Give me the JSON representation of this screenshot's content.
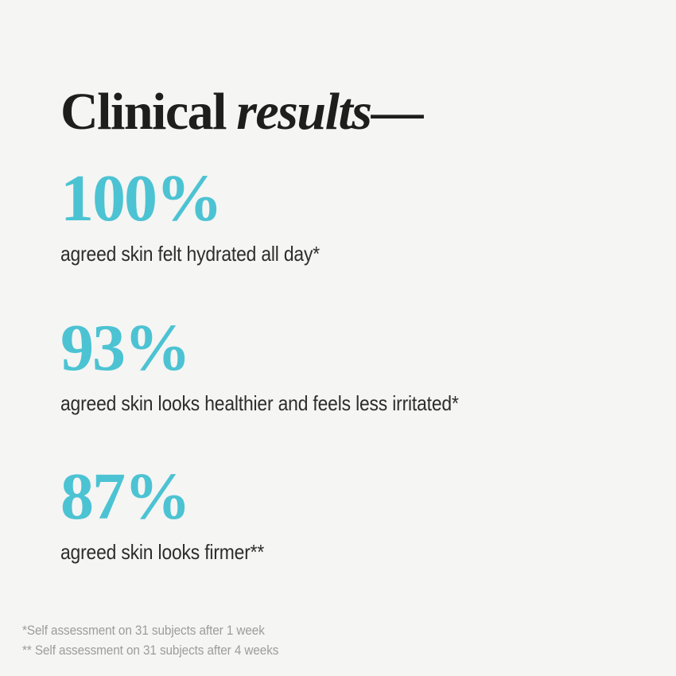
{
  "colors": {
    "background": "#f5f5f3",
    "heading": "#1e1e1c",
    "stat_value": "#4cc3d3",
    "caption": "#2d2d2d",
    "footnote": "#9c9c9c"
  },
  "heading": {
    "text_regular": "Clinical",
    "text_italic": "results",
    "dash": "—",
    "full_text": "Clinical results—"
  },
  "stats": [
    {
      "value": "100%",
      "caption": "agreed skin felt hydrated all day*"
    },
    {
      "value": "93%",
      "caption": "agreed skin looks healthier and feels less irritated*"
    },
    {
      "value": "87%",
      "caption": "agreed skin looks firmer**"
    }
  ],
  "footnotes": [
    "*Self assessment on 31 subjects after 1 week",
    "** Self assessment on 31 subjects after 4 weeks"
  ]
}
